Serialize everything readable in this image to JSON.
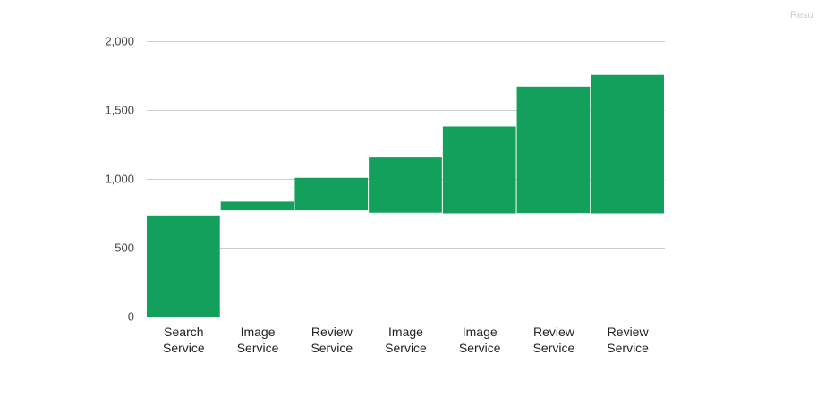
{
  "corner_text": "Resu",
  "chart_data": {
    "type": "bar",
    "subtype": "waterfall",
    "title": "",
    "xlabel": "",
    "ylabel": "",
    "ylim": [
      0,
      2000
    ],
    "yticks": [
      0,
      500,
      1000,
      1500,
      2000
    ],
    "ytick_labels": [
      "0",
      "500",
      "1,000",
      "1,500",
      "2,000"
    ],
    "grid": true,
    "legend": "none",
    "bar_color": "#12a05c",
    "categories": [
      [
        "Search",
        "Service"
      ],
      [
        "Image",
        "Service"
      ],
      [
        "Review",
        "Service"
      ],
      [
        "Image",
        "Service"
      ],
      [
        "Image",
        "Service"
      ],
      [
        "Review",
        "Service"
      ],
      [
        "Review",
        "Service"
      ]
    ],
    "ranges": [
      [
        0,
        735
      ],
      [
        772,
        835
      ],
      [
        772,
        1008
      ],
      [
        755,
        1155
      ],
      [
        750,
        1380
      ],
      [
        752,
        1670
      ],
      [
        750,
        1755
      ]
    ]
  }
}
